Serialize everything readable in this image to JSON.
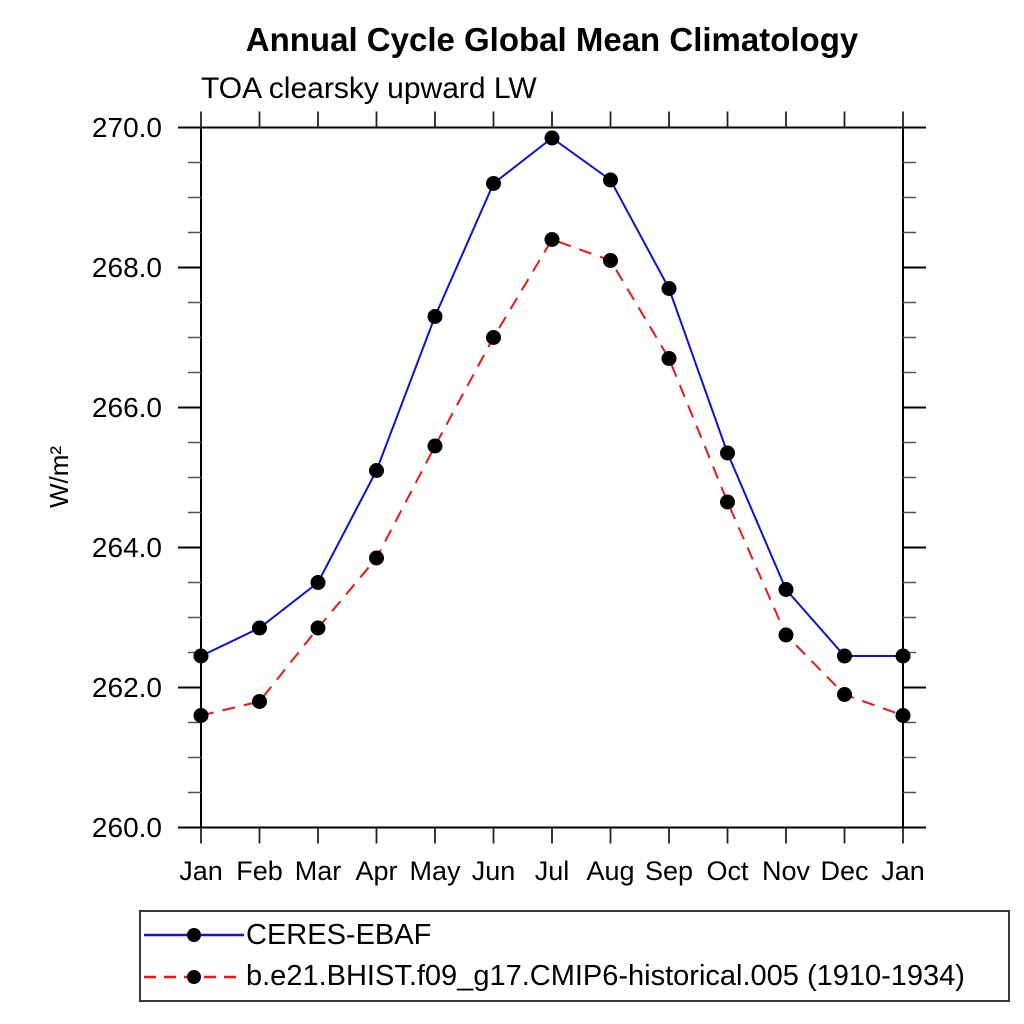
{
  "chart_data": {
    "type": "line",
    "title": "Annual Cycle Global Mean Climatology",
    "subtitle": "TOA clearsky upward LW",
    "ylabel": "W/m²",
    "xlabel": "",
    "ylim": [
      260.0,
      270.0
    ],
    "ytick_major_interval": 2.0,
    "ytick_minor_interval": 0.5,
    "ytick_labels": [
      "260.0",
      "262.0",
      "264.0",
      "266.0",
      "268.0",
      "270.0"
    ],
    "grid": "off",
    "legend_position": "bottom-left",
    "categories": [
      "Jan",
      "Feb",
      "Mar",
      "Apr",
      "May",
      "Jun",
      "Jul",
      "Aug",
      "Sep",
      "Oct",
      "Nov",
      "Dec",
      "Jan"
    ],
    "series": [
      {
        "name": "CERES-EBAF",
        "line_style": "solid",
        "line_color": "#0f0fe0",
        "marker": "filled-circle",
        "marker_color": "#000000",
        "values": [
          262.45,
          262.85,
          263.5,
          265.1,
          267.3,
          269.2,
          269.85,
          269.25,
          267.7,
          265.35,
          263.4,
          262.45,
          262.45
        ]
      },
      {
        "name": "b.e21.BHIST.f09_g17.CMIP6-historical.005 (1910-1934)",
        "line_style": "dashed",
        "line_color": "#f41414",
        "marker": "filled-circle",
        "marker_color": "#000000",
        "values": [
          261.6,
          261.8,
          262.85,
          263.85,
          265.45,
          267.0,
          268.4,
          268.1,
          266.7,
          264.65,
          262.75,
          261.9,
          261.6
        ]
      }
    ]
  }
}
